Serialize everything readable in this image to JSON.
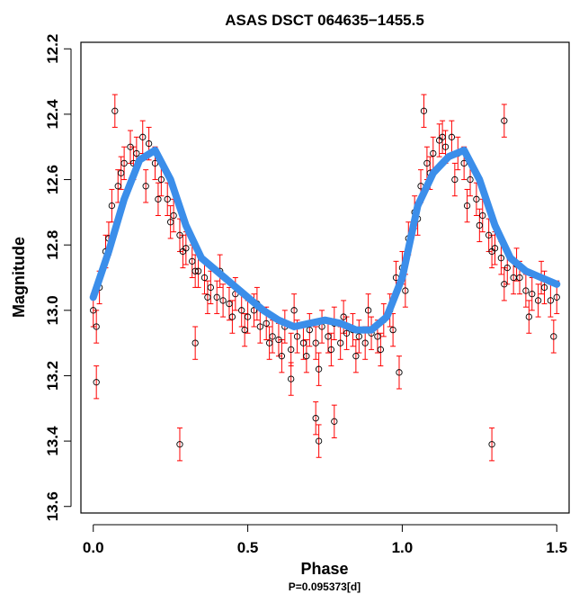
{
  "chart_data": {
    "type": "scatter",
    "title": "ASAS DSCT 064635−1455.5",
    "xlabel": "Phase",
    "xsublabel": "P=0.095373[d]",
    "ylabel": "Magnitude",
    "xlim": [
      -0.04,
      1.54
    ],
    "ylim": [
      13.62,
      12.18
    ],
    "y_inverted": true,
    "grid": false,
    "legend": "none",
    "x_ticks": [
      0.0,
      0.5,
      1.0,
      1.5
    ],
    "x_tick_labels": [
      "0.0",
      "0.5",
      "1.0",
      "1.5"
    ],
    "y_ticks": [
      12.2,
      12.4,
      12.6,
      12.8,
      13.0,
      13.2,
      13.4,
      13.6
    ],
    "y_tick_labels": [
      "12.2",
      "12.4",
      "12.6",
      "12.8",
      "13.0",
      "13.2",
      "13.4",
      "13.6"
    ],
    "colors": {
      "points": "#000000",
      "error_bars": "#ff0000",
      "fit": "#3b8eea"
    },
    "series": [
      {
        "kind": "scatter_with_error_bars",
        "x": [
          0.0,
          0.02,
          0.04,
          0.06,
          0.08,
          0.1,
          0.12,
          0.14,
          0.16,
          0.18,
          0.2,
          0.22,
          0.24,
          0.26,
          0.28,
          0.3,
          0.32,
          0.34,
          0.36,
          0.38,
          0.4,
          0.42,
          0.44,
          0.46,
          0.48,
          0.5,
          0.52,
          0.54,
          0.56,
          0.58,
          0.6,
          0.62,
          0.64,
          0.66,
          0.68,
          0.7,
          0.72,
          0.74,
          0.76,
          0.78,
          0.8,
          0.82,
          0.84,
          0.86,
          0.88,
          0.9,
          0.92,
          0.94,
          0.96,
          0.98,
          1.0,
          1.02,
          1.04,
          1.06,
          1.08,
          1.1,
          1.12,
          1.14,
          1.16,
          1.18,
          1.2,
          1.22,
          1.24,
          1.26,
          1.28,
          1.3,
          1.32,
          1.34,
          1.36,
          1.38,
          1.4,
          1.42,
          1.44,
          1.46,
          1.48,
          1.5,
          0.01,
          0.05,
          0.09,
          0.13,
          0.17,
          0.21,
          0.25,
          0.29,
          0.33,
          0.37,
          0.41,
          0.45,
          0.49,
          0.53,
          0.57,
          0.61,
          0.65,
          0.69,
          0.73,
          0.77,
          0.81,
          0.85,
          0.89,
          0.93,
          0.97,
          1.01,
          1.05,
          1.09,
          1.13,
          1.17,
          1.21,
          1.25,
          1.29,
          1.33,
          1.37,
          1.41,
          1.45,
          1.49
        ],
        "y": [
          13.0,
          12.93,
          12.82,
          12.68,
          12.62,
          12.55,
          12.5,
          12.52,
          12.47,
          12.49,
          12.55,
          12.6,
          12.66,
          12.71,
          12.77,
          12.81,
          12.85,
          12.88,
          12.9,
          12.93,
          12.96,
          12.97,
          12.98,
          12.95,
          13.0,
          13.02,
          13.0,
          13.05,
          13.04,
          13.08,
          13.09,
          13.05,
          13.12,
          13.08,
          13.1,
          13.06,
          13.1,
          13.05,
          13.08,
          13.04,
          13.1,
          13.07,
          13.06,
          13.08,
          13.1,
          13.07,
          13.08,
          13.03,
          13.0,
          12.9,
          12.87,
          12.78,
          12.7,
          12.62,
          12.55,
          12.52,
          12.48,
          12.5,
          12.47,
          12.52,
          12.55,
          12.6,
          12.66,
          12.71,
          12.77,
          12.81,
          12.84,
          12.87,
          12.9,
          12.9,
          12.94,
          12.95,
          12.97,
          12.93,
          12.97,
          12.96,
          13.05,
          12.78,
          12.58,
          12.55,
          12.62,
          12.66,
          12.73,
          12.82,
          12.88,
          12.96,
          12.88,
          13.02,
          13.06,
          12.98,
          13.1,
          13.14,
          13.0,
          13.14,
          13.18,
          13.12,
          13.02,
          13.14,
          13.0,
          13.12,
          13.06,
          12.94,
          12.72,
          12.58,
          12.47,
          12.6,
          12.68,
          12.74,
          12.82,
          12.92,
          12.86,
          13.02,
          12.9,
          13.08
        ],
        "outliers_x": [
          0.07,
          0.28,
          0.72,
          0.73,
          0.78,
          1.07,
          1.29,
          1.33,
          0.33,
          0.99,
          0.64,
          0.01
        ],
        "outliers_y": [
          12.39,
          13.41,
          13.33,
          13.4,
          13.34,
          12.39,
          13.41,
          12.42,
          13.1,
          13.19,
          13.21,
          13.22
        ],
        "err": 0.05
      },
      {
        "kind": "fit_line",
        "x": [
          0.0,
          0.05,
          0.1,
          0.15,
          0.2,
          0.25,
          0.3,
          0.35,
          0.4,
          0.45,
          0.5,
          0.55,
          0.6,
          0.65,
          0.7,
          0.75,
          0.8,
          0.85,
          0.9,
          0.95,
          1.0,
          1.05,
          1.1,
          1.15,
          1.2,
          1.25,
          1.3,
          1.35,
          1.4,
          1.45,
          1.5
        ],
        "y": [
          12.96,
          12.82,
          12.66,
          12.54,
          12.51,
          12.6,
          12.74,
          12.84,
          12.88,
          12.92,
          12.96,
          13.0,
          13.03,
          13.05,
          13.04,
          13.03,
          13.04,
          13.06,
          13.06,
          13.02,
          12.9,
          12.68,
          12.58,
          12.53,
          12.51,
          12.6,
          12.74,
          12.84,
          12.88,
          12.9,
          12.92
        ]
      }
    ]
  }
}
